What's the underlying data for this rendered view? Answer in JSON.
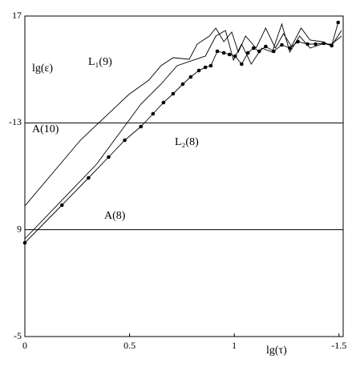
{
  "chart_data": {
    "type": "line",
    "x_label": "lg(τ)",
    "y_label": "lg(ε)",
    "xlim": [
      0,
      -1.52
    ],
    "ylim": [
      -5,
      -17
    ],
    "xticks": [
      0,
      {
        "value": -0.5,
        "label": "0.5"
      },
      {
        "value": -1,
        "label": "1"
      },
      -1.5
    ],
    "yticks": [
      {
        "value": -17,
        "label": "17"
      },
      -13,
      {
        "value": -9,
        "label": "9"
      },
      -5
    ],
    "grid": true,
    "annotations": [
      "L₁(9)",
      "A(10)",
      "L₂(8)",
      "A(8)"
    ],
    "series": [
      {
        "color": "#000",
        "marker": false,
        "x": [
          0,
          -0.265,
          -0.496,
          -0.592,
          -0.65,
          -0.708,
          -0.785,
          -0.823,
          -0.881,
          -0.912,
          -0.95,
          -0.988,
          -1.019,
          -1.054,
          -1.104,
          -1.15,
          -1.196,
          -1.235,
          -1.273,
          -1.319,
          -1.362,
          -1.419,
          -1.465,
          -1.512
        ],
        "values": [
          -9.89,
          -12.35,
          -14.06,
          -14.6,
          -15.14,
          -15.44,
          -15.38,
          -15.95,
          -16.25,
          -16.55,
          -16.04,
          -16.4,
          -15.65,
          -16.25,
          -15.8,
          -16.55,
          -15.8,
          -16.34,
          -15.86,
          -16.55,
          -16.1,
          -16.04,
          -15.89,
          -16.46
        ]
      },
      {
        "color": "#000",
        "marker": false,
        "x": [
          0,
          -0.342,
          -0.554,
          -0.65,
          -0.727,
          -0.862,
          -0.912,
          -0.958,
          -0.996,
          -1.035,
          -1.081,
          -1.131,
          -1.181,
          -1.227,
          -1.265,
          -1.312,
          -1.362,
          -1.419,
          -1.465,
          -1.512
        ],
        "values": [
          -8.66,
          -11.45,
          -13.7,
          -14.45,
          -15.14,
          -15.5,
          -16.25,
          -16.46,
          -15.35,
          -15.95,
          -15.2,
          -15.8,
          -15.65,
          -16.7,
          -15.65,
          -16.25,
          -15.8,
          -15.95,
          -15.95,
          -16.25
        ]
      },
      {
        "color": "#000",
        "marker": true,
        "x": [
          0,
          -0.177,
          -0.304,
          -0.4,
          -0.477,
          -0.554,
          -0.612,
          -0.662,
          -0.708,
          -0.754,
          -0.792,
          -0.831,
          -0.862,
          -0.888,
          -0.919,
          -0.95,
          -0.977,
          -1.004,
          -1.035,
          -1.065,
          -1.092,
          -1.119,
          -1.15,
          -1.188,
          -1.227,
          -1.265,
          -1.304,
          -1.35,
          -1.388,
          -1.427,
          -1.465,
          -1.496
        ],
        "values": [
          -8.51,
          -9.92,
          -10.94,
          -11.72,
          -12.35,
          -12.86,
          -13.34,
          -13.76,
          -14.09,
          -14.45,
          -14.72,
          -14.96,
          -15.08,
          -15.14,
          -15.68,
          -15.62,
          -15.56,
          -15.5,
          -15.2,
          -15.62,
          -15.8,
          -15.68,
          -15.86,
          -15.68,
          -15.92,
          -15.8,
          -16.04,
          -15.95,
          -15.95,
          -15.98,
          -15.89,
          -16.76
        ]
      }
    ]
  }
}
